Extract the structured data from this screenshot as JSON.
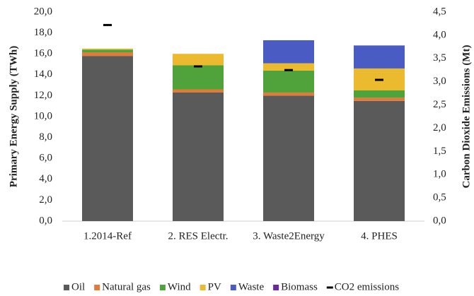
{
  "chart_data": {
    "type": "bar",
    "stacked": true,
    "grid": false,
    "legend": "bottom",
    "ylabel": "Primary Energy Supply (TWh)",
    "y2label": "Carbon Dioxide Emissions (Mt)",
    "categories": [
      "1.2014-Ref",
      "2. RES Electr.",
      "3. Waste2Energy",
      "4. PHES"
    ],
    "ylim": [
      0,
      20
    ],
    "yticks": [
      {
        "value": 0,
        "label": "0,0"
      },
      {
        "value": 2,
        "label": "2,0"
      },
      {
        "value": 4,
        "label": "4,0"
      },
      {
        "value": 6,
        "label": "6,0"
      },
      {
        "value": 8,
        "label": "8,0"
      },
      {
        "value": 10,
        "label": "10,0"
      },
      {
        "value": 12,
        "label": "12,0"
      },
      {
        "value": 14,
        "label": "14,0"
      },
      {
        "value": 16,
        "label": "16,0"
      },
      {
        "value": 18,
        "label": "18,0"
      },
      {
        "value": 20,
        "label": "20,0"
      }
    ],
    "y2lim": [
      0,
      4.5
    ],
    "y2ticks": [
      {
        "value": 0,
        "label": "0,0"
      },
      {
        "value": 0.5,
        "label": "0,5"
      },
      {
        "value": 1,
        "label": "1,0"
      },
      {
        "value": 1.5,
        "label": "1,5"
      },
      {
        "value": 2,
        "label": "2,0"
      },
      {
        "value": 2.5,
        "label": "2,5"
      },
      {
        "value": 3,
        "label": "3,0"
      },
      {
        "value": 3.5,
        "label": "3,5"
      },
      {
        "value": 4,
        "label": "4,0"
      },
      {
        "value": 4.5,
        "label": "4,5"
      }
    ],
    "series": [
      {
        "name": "Oil",
        "color": "#5a5a5a",
        "values": [
          15.8,
          12.3,
          12.0,
          11.5
        ]
      },
      {
        "name": "Natural gas",
        "color": "#e07b39",
        "values": [
          0.35,
          0.3,
          0.3,
          0.3
        ]
      },
      {
        "name": "Wind",
        "color": "#4fa33a",
        "values": [
          0.25,
          2.3,
          2.1,
          0.7
        ]
      },
      {
        "name": "PV",
        "color": "#ebba2e",
        "values": [
          0.1,
          1.1,
          0.7,
          2.1
        ]
      },
      {
        "name": "Waste",
        "color": "#4a5cc4",
        "values": [
          0,
          0,
          2.2,
          2.2
        ]
      },
      {
        "name": "Biomass",
        "color": "#6a2a9e",
        "values": [
          0,
          0,
          0,
          0
        ]
      },
      {
        "name": "CO2 emissions",
        "color": "#000000",
        "axis": "y2",
        "marker": "dash",
        "values": [
          4.22,
          3.33,
          3.25,
          3.04
        ]
      }
    ]
  }
}
